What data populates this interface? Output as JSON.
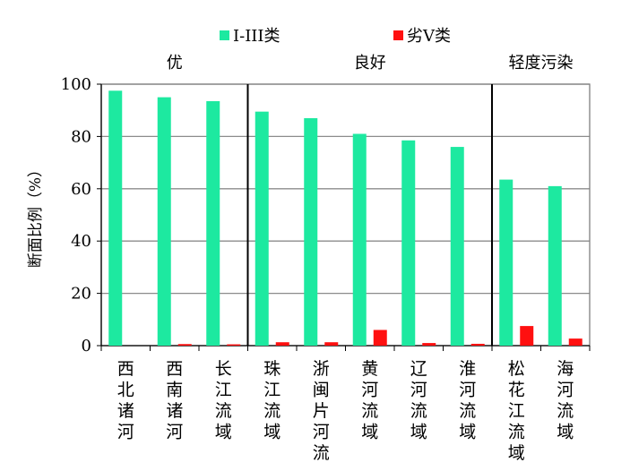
{
  "chart_data": {
    "type": "bar",
    "title": "",
    "xlabel": "",
    "ylabel": "断面比例（%）",
    "ylim": [
      0,
      100
    ],
    "yticks": [
      "0",
      "20",
      "40",
      "60",
      "80",
      "100"
    ],
    "grid": true,
    "legend_position": "top",
    "categories": [
      [
        "西",
        "北",
        "诸",
        "河"
      ],
      [
        "西",
        "南",
        "诸",
        "河"
      ],
      [
        "长",
        "江",
        "流",
        "域"
      ],
      [
        "珠",
        "江",
        "流",
        "域"
      ],
      [
        "浙",
        "闽",
        "片",
        "河",
        "流"
      ],
      [
        "黄",
        "河",
        "流",
        "域"
      ],
      [
        "辽",
        "河",
        "流",
        "域"
      ],
      [
        "淮",
        "河",
        "流",
        "域"
      ],
      [
        "松",
        "花",
        "江",
        "流",
        "域"
      ],
      [
        "海",
        "河",
        "流",
        "域"
      ]
    ],
    "series": [
      {
        "name": "I-III类",
        "color": "#1de9a0",
        "values": [
          97.5,
          95.0,
          93.5,
          89.5,
          87.0,
          81.0,
          78.5,
          76.0,
          63.5,
          61.0
        ]
      },
      {
        "name": "劣V类",
        "color": "#ff1010",
        "values": [
          0,
          0.6,
          0.5,
          1.3,
          1.3,
          6.0,
          1.0,
          0.7,
          7.5,
          2.7
        ]
      }
    ],
    "groups": [
      {
        "label": "优",
        "start": 0,
        "end": 2
      },
      {
        "label": "良好",
        "start": 3,
        "end": 7
      },
      {
        "label": "轻度污染",
        "start": 8,
        "end": 9
      }
    ]
  }
}
